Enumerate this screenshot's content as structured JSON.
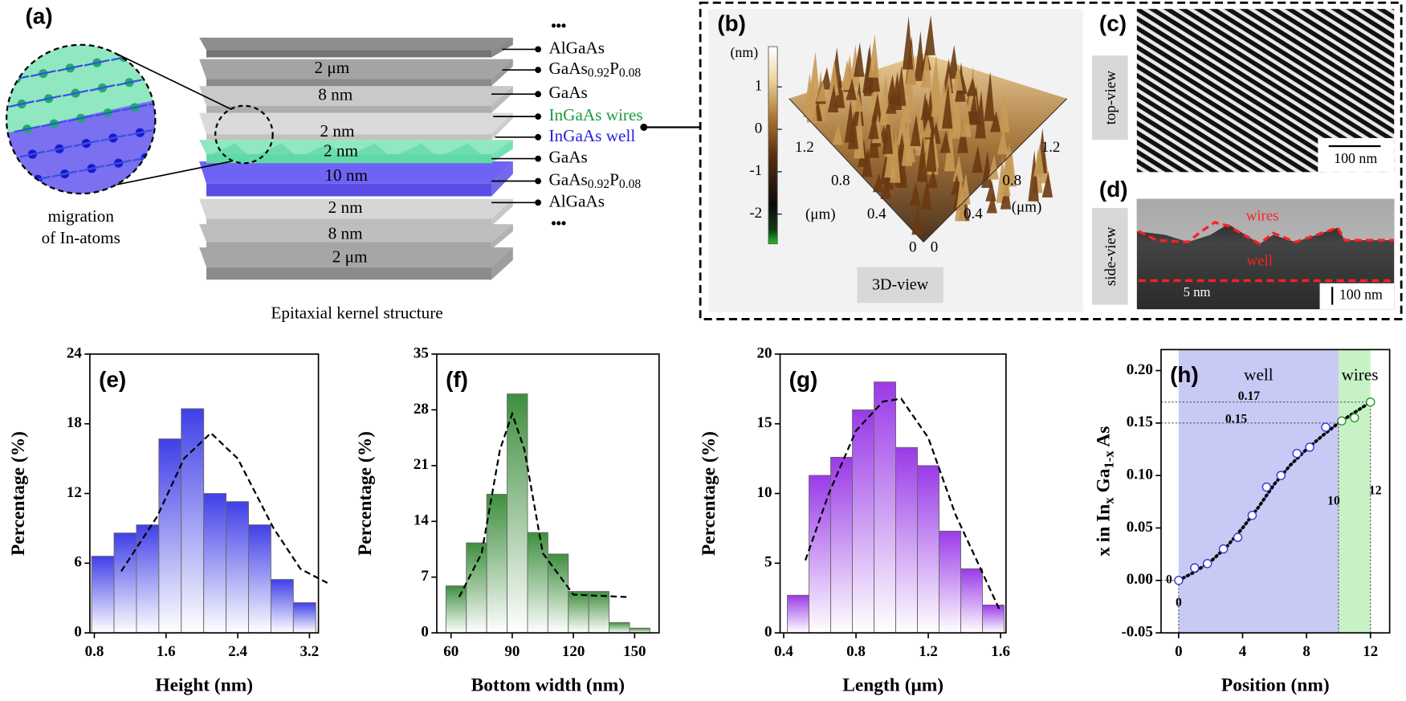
{
  "panel_a": {
    "label": "(a)",
    "inset_caption": [
      "migration",
      "of In-atoms"
    ],
    "caption": "Epitaxial kernel structure",
    "ellipsis": [
      "•••",
      "•••"
    ],
    "layers": [
      {
        "parts": [
          "AlGaAs"
        ],
        "color": "#000000"
      },
      {
        "parts": [
          "GaAs",
          "0.92",
          "P",
          "0.08"
        ],
        "color": "#000000"
      },
      {
        "parts": [
          "GaAs"
        ],
        "color": "#000000"
      },
      {
        "parts": [
          "InGaAs wires"
        ],
        "color": "#1e9a3c"
      },
      {
        "parts": [
          "InGaAs well"
        ],
        "color": "#2323d8"
      },
      {
        "parts": [
          "GaAs"
        ],
        "color": "#000000"
      },
      {
        "parts": [
          "GaAs",
          "0.92",
          "P",
          "0.08"
        ],
        "color": "#000000"
      },
      {
        "parts": [
          "AlGaAs"
        ],
        "color": "#000000"
      }
    ],
    "thicknesses": [
      "2 μm",
      "8 nm",
      "2 nm",
      "2 nm",
      "10 nm",
      "2 nm",
      "8 nm",
      "2 μm"
    ]
  },
  "panel_b": {
    "label": "(b)",
    "colorbar_unit": "(nm)",
    "clim": [
      -2.7,
      1.95
    ],
    "colorbar_ticks": [
      1,
      0,
      -1,
      -2
    ],
    "axis_unit_left": "(μm)",
    "axis_unit_right": "(μm)",
    "xlim": [
      0,
      1.45
    ],
    "ylim": [
      0,
      1.45
    ],
    "xticks": [
      0,
      0.4,
      0.8,
      1.2
    ],
    "yticks": [
      0,
      0.4,
      0.8,
      1.2
    ],
    "view": "3D-view"
  },
  "panel_c": {
    "label": "(c)",
    "view": "top-view",
    "scale_bar": "100 nm"
  },
  "panel_d": {
    "label": "(d)",
    "view": "side-view",
    "wires": "wires",
    "well": "well",
    "height_bar": "5 nm",
    "scale_bar": "100 nm"
  },
  "chart_data": [
    {
      "type": "histogram",
      "label": "(e)",
      "xlabel": "Height (nm)",
      "ylabel": "Percentage (%)",
      "color": "#3f3fe8",
      "bins": [
        0.77,
        1.02,
        1.27,
        1.52,
        1.77,
        2.02,
        2.27,
        2.52,
        2.77,
        3.02,
        3.27
      ],
      "values": [
        6.6,
        8.6,
        9.3,
        16.7,
        19.3,
        12,
        11.3,
        9.3,
        4.6,
        2.6
      ],
      "fit": {
        "x": [
          1.1,
          1.5,
          1.8,
          2.1,
          2.4,
          2.8,
          3.1,
          3.4
        ],
        "values": [
          5.3,
          10,
          15,
          17.2,
          15,
          9,
          5.5,
          4.3
        ]
      },
      "xlim": [
        0.75,
        3.3
      ],
      "ylim": [
        0,
        24
      ],
      "xticks": [
        0.8,
        1.6,
        2.4,
        3.2
      ],
      "yticks": [
        0,
        6,
        12,
        18,
        24
      ]
    },
    {
      "type": "histogram",
      "label": "(f)",
      "xlabel": "Bottom width (nm)",
      "ylabel": "Percentage (%)",
      "color": "#3f8f3f",
      "bins": [
        57.5,
        67.5,
        77.5,
        87.5,
        97.5,
        107.5,
        117.5,
        127.5,
        137.5,
        147.5,
        157.5
      ],
      "values": [
        5.9,
        11.3,
        17.4,
        30,
        12.6,
        9.9,
        5.2,
        5.2,
        1.3,
        0.6
      ],
      "fit": {
        "x": [
          64,
          75,
          84,
          90,
          96,
          105,
          120,
          146
        ],
        "values": [
          4.5,
          10,
          23,
          27.5,
          23,
          10,
          4.8,
          4.5
        ]
      },
      "xlim": [
        53,
        162
      ],
      "ylim": [
        0,
        35
      ],
      "xticks": [
        60,
        90,
        120,
        150
      ],
      "yticks": [
        0,
        7,
        14,
        21,
        28,
        35
      ]
    },
    {
      "type": "histogram",
      "label": "(g)",
      "xlabel": "Length (μm)",
      "ylabel": "Percentage (%)",
      "color": "#9a3ae8",
      "bins": [
        0.42,
        0.54,
        0.66,
        0.78,
        0.9,
        1.02,
        1.14,
        1.26,
        1.38,
        1.5,
        1.62
      ],
      "values": [
        2.7,
        11.3,
        12.6,
        16,
        18,
        13.3,
        12,
        7.3,
        4.6,
        2
      ],
      "fit": {
        "x": [
          0.52,
          0.65,
          0.8,
          0.95,
          1.05,
          1.2,
          1.35,
          1.6
        ],
        "values": [
          5.2,
          10,
          14.5,
          16.6,
          16.8,
          14,
          8.5,
          1.5
        ]
      },
      "xlim": [
        0.38,
        1.63
      ],
      "ylim": [
        0,
        20
      ],
      "xticks": [
        0.4,
        0.8,
        1.2,
        1.6
      ],
      "yticks": [
        0,
        5,
        10,
        15,
        20
      ]
    },
    {
      "type": "scatter",
      "label": "(h)",
      "xlabel": "Position (nm)",
      "ylabel_parts": [
        "x in In",
        "x",
        " Ga",
        "1-x",
        " As"
      ],
      "regions": [
        {
          "name": "well",
          "from": 0,
          "to": 10,
          "color": "#c9c9f6"
        },
        {
          "name": "wires",
          "from": 10,
          "to": 12,
          "color": "#c6f2c6"
        }
      ],
      "series": [
        {
          "color": "#3a3ad8",
          "x": [
            0,
            1,
            1.8,
            2.8,
            3.7,
            4.6,
            5.5,
            6.4,
            7.4,
            8.2,
            9.2
          ],
          "values": [
            0,
            0.012,
            0.016,
            0.03,
            0.041,
            0.062,
            0.089,
            0.1,
            0.121,
            0.127,
            0.146
          ]
        },
        {
          "color": "#2a9a2a",
          "x": [
            10.2,
            11,
            12
          ],
          "values": [
            0.152,
            0.155,
            0.17
          ]
        }
      ],
      "fit": {
        "x": [
          0,
          1,
          2,
          3,
          4,
          5,
          6,
          7,
          8,
          9,
          10,
          11,
          12
        ],
        "values": [
          0,
          0.008,
          0.018,
          0.032,
          0.05,
          0.07,
          0.092,
          0.11,
          0.125,
          0.138,
          0.15,
          0.16,
          0.17
        ]
      },
      "guides": [
        {
          "x": 12,
          "y": 0.17
        },
        {
          "x": 10,
          "y": 0.15
        },
        {
          "x": 0,
          "y": 0
        }
      ],
      "xlim": [
        -1.1,
        13.2
      ],
      "ylim": [
        -0.05,
        0.22
      ],
      "xticks": [
        0,
        4,
        8,
        12
      ],
      "yticks": [
        -0.05,
        {
          "value": 0,
          "label": "0.00"
        },
        0.05,
        {
          "value": 0.1,
          "label": "0.10"
        },
        0.15,
        {
          "value": 0.2,
          "label": "0.20"
        }
      ]
    }
  ]
}
